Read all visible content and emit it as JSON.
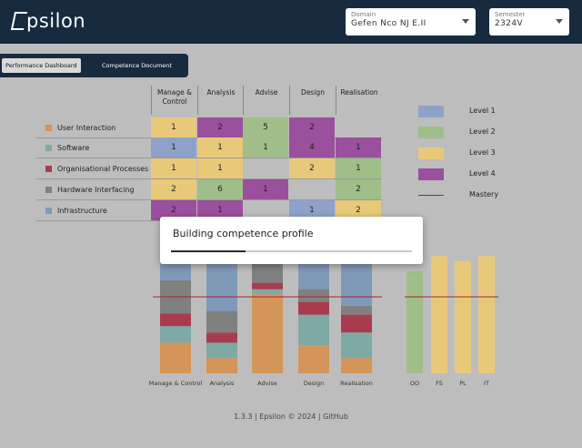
{
  "app": {
    "logo_text": "psilon"
  },
  "selectors": [
    {
      "label": "Domain",
      "value": "Gefen Nco NJ E.II"
    },
    {
      "label": "Semester",
      "value": "2324V"
    }
  ],
  "tabs": [
    {
      "label": "Performance Dashboard",
      "active": true
    },
    {
      "label": "Competence Document",
      "active": false
    }
  ],
  "matrix": {
    "columns": [
      "Manage & Control",
      "Analysis",
      "Advise",
      "Design",
      "Realisation"
    ],
    "rows": [
      {
        "label": "User Interaction",
        "color": "#d4955a",
        "cells": [
          {
            "v": "1",
            "level": 3
          },
          {
            "v": "2",
            "level": 4
          },
          {
            "v": "5",
            "level": 2
          },
          {
            "v": "2",
            "level": 4
          },
          {
            "v": "",
            "level": 0
          }
        ]
      },
      {
        "label": "Software",
        "color": "#7fa9a4",
        "cells": [
          {
            "v": "1",
            "level": 1
          },
          {
            "v": "1",
            "level": 3
          },
          {
            "v": "1",
            "level": 2
          },
          {
            "v": "4",
            "level": 4
          },
          {
            "v": "1",
            "level": 4
          }
        ]
      },
      {
        "label": "Organisational Processes",
        "color": "#a83c4e",
        "cells": [
          {
            "v": "1",
            "level": 3
          },
          {
            "v": "1",
            "level": 3
          },
          {
            "v": "",
            "level": 0
          },
          {
            "v": "2",
            "level": 3
          },
          {
            "v": "1",
            "level": 2
          }
        ]
      },
      {
        "label": "Hardware Interfacing",
        "color": "#808080",
        "cells": [
          {
            "v": "2",
            "level": 3
          },
          {
            "v": "6",
            "level": 2
          },
          {
            "v": "1",
            "level": 4
          },
          {
            "v": "",
            "level": 0
          },
          {
            "v": "2",
            "level": 2
          }
        ]
      },
      {
        "label": "Infrastructure",
        "color": "#7f99b8",
        "cells": [
          {
            "v": "2",
            "level": 4
          },
          {
            "v": "1",
            "level": 4
          },
          {
            "v": "",
            "level": 0
          },
          {
            "v": "1",
            "level": 1
          },
          {
            "v": "2",
            "level": 3
          }
        ]
      }
    ]
  },
  "legend": [
    {
      "label": "Level 1",
      "color": "#8ea2c9",
      "kind": "swatch"
    },
    {
      "label": "Level 2",
      "color": "#9fbe8a",
      "kind": "swatch"
    },
    {
      "label": "Level 3",
      "color": "#e8c97a",
      "kind": "swatch"
    },
    {
      "label": "Level 4",
      "color": "#9a509c",
      "kind": "swatch"
    },
    {
      "label": "Mastery",
      "color": "#a0262c",
      "kind": "line"
    }
  ],
  "chart_data": [
    {
      "type": "bar",
      "categories": [
        "Manage & Control",
        "Analysis",
        "Advise",
        "Design",
        "Realisation"
      ],
      "series": [
        {
          "values": [
            24,
            12,
            62,
            22,
            12
          ],
          "color": "#d4955a"
        },
        {
          "values": [
            13,
            12,
            4,
            24,
            20
          ],
          "color": "#7fa9a4"
        },
        {
          "values": [
            10,
            8,
            5,
            10,
            14
          ],
          "color": "#a83c4e"
        },
        {
          "values": [
            26,
            17,
            15,
            10,
            7
          ],
          "color": "#808080"
        },
        {
          "values": [
            27,
            51,
            14,
            34,
            47
          ],
          "color": "#7f99b8"
        }
      ],
      "mastery": 60
    },
    {
      "type": "bar",
      "categories": [
        "OO",
        "FS",
        "PL",
        "IT"
      ],
      "values": [
        80,
        92,
        88,
        92
      ],
      "colors": [
        "#9fbe8a",
        "#e8c97a",
        "#e8c97a",
        "#e8c97a"
      ],
      "mastery": 60
    }
  ],
  "footer": {
    "text": "1.3.3 | Epsilon © 2024 | GitHub"
  },
  "dialog": {
    "title": "Building competence profile",
    "progress": 0.31
  }
}
